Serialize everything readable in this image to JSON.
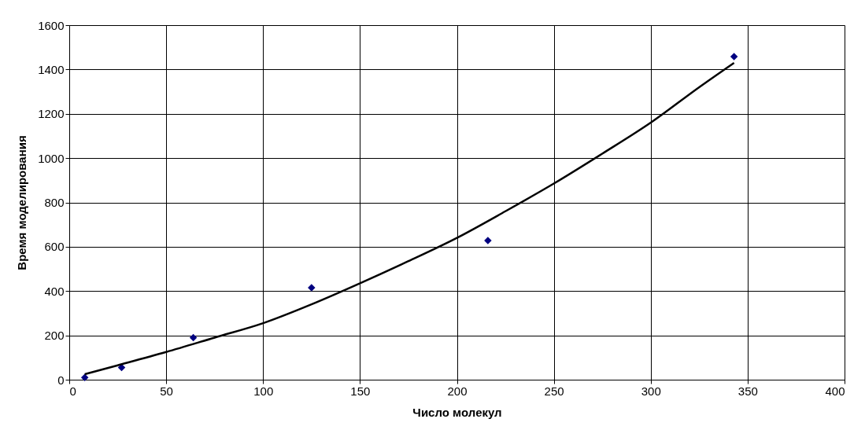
{
  "chart_data": {
    "type": "scatter",
    "xlabel": "Число молекул",
    "ylabel": "Время моделирования",
    "xlim": [
      0,
      400
    ],
    "xticks": [
      0,
      50,
      100,
      150,
      200,
      250,
      300,
      350,
      400
    ],
    "ylim": [
      0,
      1600
    ],
    "yticks": [
      0,
      200,
      400,
      600,
      800,
      1000,
      1200,
      1400,
      1600
    ],
    "grid": true,
    "marker": "diamond",
    "series": [
      {
        "color": "#000080",
        "x": [
          8,
          27,
          64,
          125,
          216,
          343
        ],
        "values": [
          10,
          55,
          190,
          415,
          628,
          1458
        ]
      },
      {
        "type": "line",
        "color": "#000000",
        "line_style": "solid",
        "marker": "none",
        "x": [
          8,
          25,
          50,
          75,
          100,
          125,
          150,
          175,
          200,
          225,
          250,
          275,
          300,
          325,
          343
        ],
        "values": [
          25,
          65,
          125,
          190,
          255,
          340,
          435,
          535,
          640,
          760,
          885,
          1020,
          1160,
          1320,
          1430
        ]
      }
    ]
  }
}
